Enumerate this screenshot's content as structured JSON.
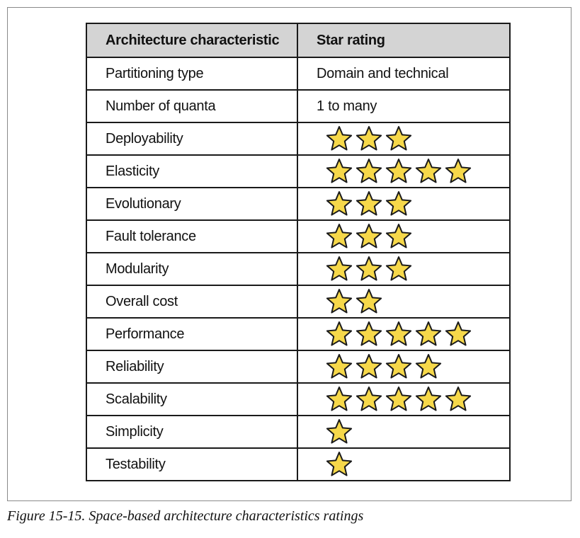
{
  "table": {
    "headers": [
      "Architecture characteristic",
      "Star rating"
    ],
    "rows": [
      {
        "characteristic": "Partitioning type",
        "value": "Domain and technical"
      },
      {
        "characteristic": "Number of quanta",
        "value": "1 to many"
      },
      {
        "characteristic": "Deployability",
        "stars": 3
      },
      {
        "characteristic": "Elasticity",
        "stars": 5
      },
      {
        "characteristic": "Evolutionary",
        "stars": 3
      },
      {
        "characteristic": "Fault tolerance",
        "stars": 3
      },
      {
        "characteristic": "Modularity",
        "stars": 3
      },
      {
        "characteristic": "Overall cost",
        "stars": 2
      },
      {
        "characteristic": "Performance",
        "stars": 5
      },
      {
        "characteristic": "Reliability",
        "stars": 4
      },
      {
        "characteristic": "Scalability",
        "stars": 5
      },
      {
        "characteristic": "Simplicity",
        "stars": 1
      },
      {
        "characteristic": "Testability",
        "stars": 1
      }
    ]
  },
  "caption": {
    "label": "Figure 15-15.",
    "text": "Space-based architecture characteristics ratings"
  },
  "colors": {
    "star_fill": "#f6d84a",
    "star_stroke": "#1a1a1a",
    "header_bg": "#d4d4d4"
  },
  "icons": {
    "rating": "star-icon"
  }
}
